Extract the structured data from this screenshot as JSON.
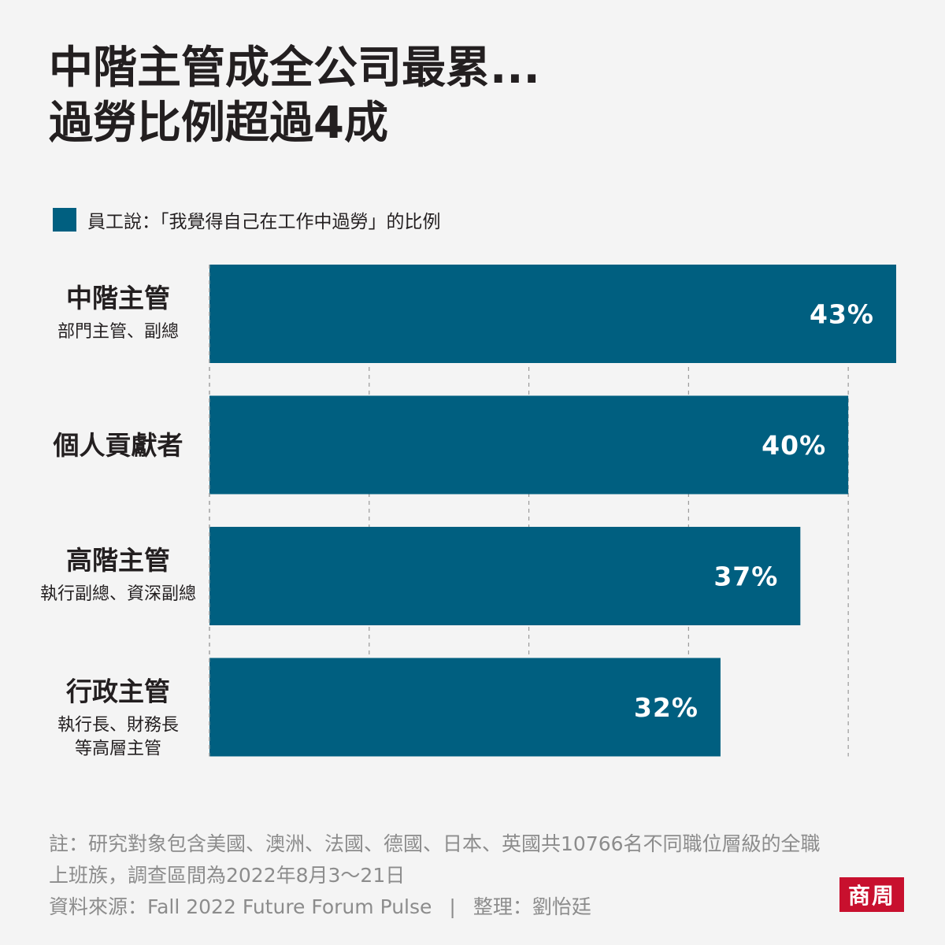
{
  "title_lines": [
    "中階主管成全公司最累...",
    "過勞比例超過4成"
  ],
  "legend": {
    "label": "員工說：「我覺得自己在工作中過勞」的比例",
    "color": "#005f80"
  },
  "chart_data": {
    "type": "bar",
    "orientation": "horizontal",
    "categories": [
      {
        "label": "中階主管",
        "sublabel": [
          "部門主管、副總"
        ]
      },
      {
        "label": "個人貢獻者",
        "sublabel": []
      },
      {
        "label": "高階主管",
        "sublabel": [
          "執行副總、資深副總"
        ]
      },
      {
        "label": "行政主管",
        "sublabel": [
          "執行長、財務長",
          "等高層主管"
        ]
      }
    ],
    "series": [
      {
        "name": "員工說：「我覺得自己在工作中過勞」的比例",
        "values": [
          43,
          40,
          37,
          32
        ]
      }
    ],
    "value_labels": [
      "43%",
      "40%",
      "37%",
      "32%"
    ],
    "xlim": [
      0,
      43
    ],
    "grid": "vertical dashed",
    "legend_position": "top-left",
    "bar_color": "#005f80"
  },
  "footer": {
    "note_line1": "註：研究對象包含美國、澳洲、法國、德國、日本、英國共10766名不同職位層級的全職",
    "note_line2": "上班族，調查區間為2022年8月3～21日",
    "source": "資料來源：Fall 2022 Future Forum Pulse",
    "separator": "|",
    "editor": "整理：劉怡廷"
  },
  "logo": {
    "text": "商周",
    "color": "#c8102e"
  }
}
